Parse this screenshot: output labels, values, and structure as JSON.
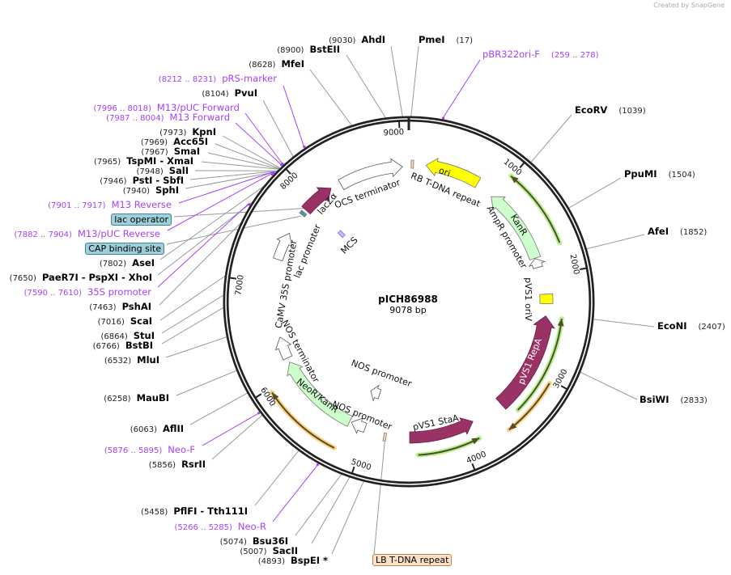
{
  "credit": "Created by SnapGene",
  "plasmid": {
    "name": "pICH86988",
    "size_label": "9078 bp",
    "length_bp": 9078
  },
  "ticks": [
    1000,
    2000,
    3000,
    4000,
    5000,
    6000,
    7000,
    8000,
    9000
  ],
  "colors": {
    "primer": "#a640ff",
    "backbone": "#222222",
    "orf_green": "#4e4e2a",
    "orf_glow_green": "#b8f090",
    "orf_glow_orange": "#ffcf80"
  },
  "features": [
    {
      "label": "ori",
      "start": 180,
      "end": 760,
      "dir": "reverse",
      "color": "#ffff00"
    },
    {
      "label": "RB T-DNA repeat",
      "start": 25,
      "end": 50,
      "dir": "none",
      "color": "#fdd8b8"
    },
    {
      "label": "OCS terminator",
      "start": 8320,
      "end": 9010,
      "dir": "forward",
      "color": "#ffffff"
    },
    {
      "label": "KanR",
      "start": 960,
      "end": 1790,
      "dir": "reverse",
      "color": "#ccffcc"
    },
    {
      "label": "AmpR promoter",
      "start": 1795,
      "end": 1895,
      "dir": "reverse",
      "color": "#ffffff"
    },
    {
      "label": "pVS1 oriV",
      "start": 2190,
      "end": 2290,
      "dir": "none",
      "color": "#ffff00"
    },
    {
      "label": "pVS1 RepA",
      "start": 2420,
      "end": 3480,
      "dir": "reverse",
      "color": "#993366"
    },
    {
      "label": "pVS1 StaA",
      "start": 3830,
      "end": 4530,
      "dir": "reverse",
      "color": "#993366"
    },
    {
      "label": "LB T-DNA repeat",
      "start": 4780,
      "end": 4805,
      "dir": "none",
      "color": "#fdd8b8"
    },
    {
      "label": "NOS promoter",
      "start": 5020,
      "end": 5180,
      "dir": "forward",
      "color": "#ffffff"
    },
    {
      "label": "NeoR/KanR",
      "start": 5200,
      "end": 6130,
      "dir": "forward",
      "color": "#ccffcc"
    },
    {
      "label": "NOS terminator",
      "start": 6180,
      "end": 6420,
      "dir": "forward",
      "color": "#ffffff"
    },
    {
      "label": "NOS promoter",
      "start": 4980,
      "end": 5120,
      "dir": "forward",
      "color": "#ffffff"
    },
    {
      "label": "CaMV 35S promoter",
      "start": 7260,
      "end": 7560,
      "dir": "forward",
      "color": "#ffffff"
    },
    {
      "label": "lac promoter",
      "start": 7795,
      "end": 7830,
      "dir": "none",
      "color": "#4a98a8"
    },
    {
      "label": "lacZα",
      "start": 7860,
      "end": 8210,
      "dir": "forward",
      "color": "#993366"
    },
    {
      "label": "MCS",
      "start": 7920,
      "end": 7975,
      "dir": "none",
      "color": "#a8c8f8"
    }
  ],
  "orfs": [
    {
      "start": 985,
      "end": 1730,
      "dir": "reverse",
      "glow": "green"
    },
    {
      "start": 2430,
      "end": 3400,
      "dir": "reverse",
      "glow": "green"
    },
    {
      "start": 3030,
      "end": 3580,
      "dir": "forward",
      "glow": "orange"
    },
    {
      "start": 3850,
      "end": 4450,
      "dir": "reverse",
      "glow": "green"
    },
    {
      "start": 5220,
      "end": 5960,
      "dir": "forward",
      "glow": "orange"
    }
  ],
  "sites": [
    {
      "pos": "(9030)",
      "name": "AhdI",
      "bp": 9030
    },
    {
      "pos": "(17)",
      "name": "PmeI",
      "bp": 17
    },
    {
      "pos": "(259 .. 278)",
      "name": "pBR322ori-F",
      "bp": 268,
      "kind": "primer"
    },
    {
      "pos": "(8900)",
      "name": "BstEII",
      "bp": 8900
    },
    {
      "pos": "(8628)",
      "name": "MfeI",
      "bp": 8628
    },
    {
      "pos": "(8212 .. 8231)",
      "name": "pRS-marker",
      "bp": 8221,
      "kind": "primer"
    },
    {
      "pos": "(8104)",
      "name": "PvuI",
      "bp": 8104
    },
    {
      "pos": "(7996 .. 8018)",
      "name": "M13/pUC Forward",
      "bp": 8007,
      "kind": "primer"
    },
    {
      "pos": "(7987 .. 8004)",
      "name": "M13 Forward",
      "bp": 7995,
      "kind": "primer"
    },
    {
      "pos": "(7973)",
      "name": "KpnI",
      "bp": 7973
    },
    {
      "pos": "(7969)",
      "name": "Acc65I",
      "bp": 7969
    },
    {
      "pos": "(7967)",
      "name": "SmaI",
      "bp": 7967
    },
    {
      "pos": "(7965)",
      "name": "TspMI   - XmaI",
      "bp": 7965
    },
    {
      "pos": "(7948)",
      "name": "SalI",
      "bp": 7948
    },
    {
      "pos": "(7946)",
      "name": "PstI   - SbfI",
      "bp": 7946
    },
    {
      "pos": "(7940)",
      "name": "SphI",
      "bp": 7940
    },
    {
      "pos": "(7901 .. 7917)",
      "name": "M13 Reverse",
      "bp": 7909,
      "kind": "primer"
    },
    {
      "pos": "",
      "name": "lac operator",
      "bp": 7890,
      "kind": "boxed"
    },
    {
      "pos": "(7882 .. 7904)",
      "name": "M13/pUC Reverse",
      "bp": 7893,
      "kind": "primer"
    },
    {
      "pos": "",
      "name": "CAP binding site",
      "bp": 7780,
      "kind": "boxed"
    },
    {
      "pos": "(7802)",
      "name": "AseI",
      "bp": 7802
    },
    {
      "pos": "(7650)",
      "name": "PaeR7I   - PspXI   - XhoI",
      "bp": 7650
    },
    {
      "pos": "(7590 .. 7610)",
      "name": "35S promoter",
      "bp": 7600,
      "kind": "primer"
    },
    {
      "pos": "(7463)",
      "name": "PshAI",
      "bp": 7463
    },
    {
      "pos": "(7016)",
      "name": "ScaI",
      "bp": 7016
    },
    {
      "pos": "(6864)",
      "name": "StuI",
      "bp": 6864
    },
    {
      "pos": "(6766)",
      "name": "BstBI",
      "bp": 6766
    },
    {
      "pos": "(6532)",
      "name": "MluI",
      "bp": 6532
    },
    {
      "pos": "(6258)",
      "name": "MauBI",
      "bp": 6258
    },
    {
      "pos": "(6063)",
      "name": "AflII",
      "bp": 6063
    },
    {
      "pos": "(5876 .. 5895)",
      "name": "Neo-F",
      "bp": 5885,
      "kind": "primer"
    },
    {
      "pos": "(5856)",
      "name": "RsrII",
      "bp": 5856
    },
    {
      "pos": "(5458)",
      "name": "PflFI   - Tth111I",
      "bp": 5458
    },
    {
      "pos": "(5266 .. 5285)",
      "name": "Neo-R",
      "bp": 5275,
      "kind": "primer"
    },
    {
      "pos": "(5074)",
      "name": "Bsu36I",
      "bp": 5074
    },
    {
      "pos": "(5007)",
      "name": "SacII",
      "bp": 5007
    },
    {
      "pos": "(4893)",
      "name": "BspEI  *",
      "bp": 4893
    },
    {
      "pos": "",
      "name": "LB T-DNA repeat",
      "bp": 4792,
      "kind": "boxed lb"
    },
    {
      "pos": "(1039)",
      "name": "EcoRV",
      "bp": 1039
    },
    {
      "pos": "(1504)",
      "name": "PpuMI",
      "bp": 1504
    },
    {
      "pos": "(1852)",
      "name": "AfeI",
      "bp": 1852
    },
    {
      "pos": "(2407)",
      "name": "EcoNI",
      "bp": 2407
    },
    {
      "pos": "(2833)",
      "name": "BsiWI",
      "bp": 2833
    }
  ]
}
